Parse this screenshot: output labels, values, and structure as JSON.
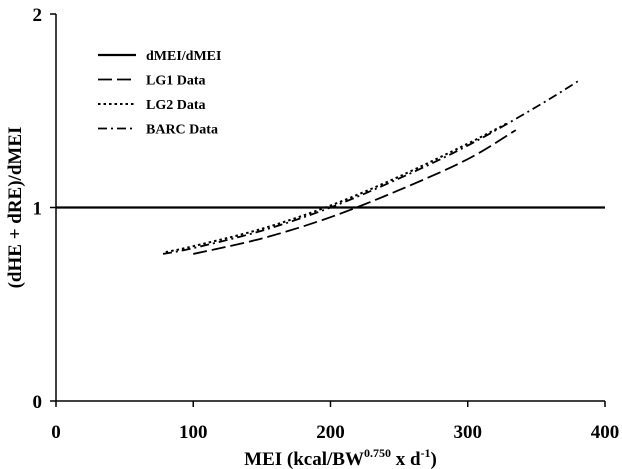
{
  "chart_data": {
    "type": "line",
    "xlabel": "MEI (kcal/BW",
    "xlabel_sup": "0.750",
    "xlabel_mid": " x d",
    "xlabel_sup2": "-1",
    "xlabel_end": ")",
    "ylabel": "(dHE + dRE)/dMEI",
    "xlim": [
      0,
      400
    ],
    "ylim": [
      0,
      2
    ],
    "x_ticks": [
      "0",
      "100",
      "200",
      "300",
      "400"
    ],
    "y_ticks": [
      "0",
      "1",
      "2"
    ],
    "legend_position": "top-left",
    "series": [
      {
        "name": "dMEI/dMEI",
        "style": "solid",
        "x": [
          0,
          400
        ],
        "y": [
          1,
          1
        ]
      },
      {
        "name": "LG1 Data",
        "style": "long-dash",
        "x": [
          100,
          150,
          200,
          250,
          300,
          335
        ],
        "y": [
          0.76,
          0.84,
          0.95,
          1.09,
          1.25,
          1.4
        ]
      },
      {
        "name": "LG2 Data",
        "style": "dot",
        "x": [
          80,
          100,
          150,
          200,
          250,
          300,
          330
        ],
        "y": [
          0.77,
          0.8,
          0.89,
          1.01,
          1.16,
          1.33,
          1.44
        ]
      },
      {
        "name": "BARC Data",
        "style": "dash-dot",
        "x": [
          78,
          100,
          150,
          200,
          250,
          300,
          350,
          382
        ],
        "y": [
          0.76,
          0.79,
          0.88,
          1.0,
          1.15,
          1.32,
          1.52,
          1.66
        ]
      }
    ]
  }
}
